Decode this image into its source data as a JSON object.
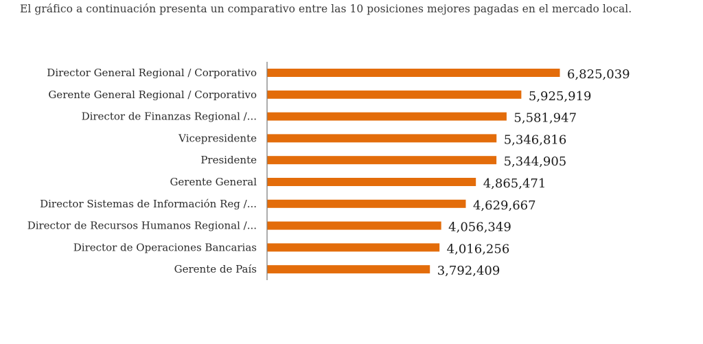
{
  "intro_text": "El gráfico a continuación presenta un comparativo entre las 10 posiciones mejores pagadas en el mercado local.",
  "chart_data": {
    "type": "bar",
    "orientation": "horizontal",
    "categories": [
      "Director General Regional / Corporativo",
      "Gerente General Regional / Corporativo",
      "Director de Finanzas Regional /...",
      "Vicepresidente",
      "Presidente",
      "Gerente General",
      "Director Sistemas de Información Reg /...",
      "Director de Recursos Humanos Regional /...",
      "Director de Operaciones Bancarias",
      "Gerente de País"
    ],
    "values": [
      6825039,
      5925919,
      5581947,
      5346816,
      5344905,
      4865471,
      4629667,
      4056349,
      4016256,
      3792409
    ],
    "value_labels": [
      "6,825,039",
      "5,925,919",
      "5,581,947",
      "5,346,816",
      "5,344,905",
      "4,865,471",
      "4,629,667",
      "4,056,349",
      "4,016,256",
      "3,792,409"
    ],
    "bar_color": "#E36C0A",
    "axis_color": "#808080",
    "xlim": [
      0,
      7600000
    ],
    "grid": false,
    "legend": "none"
  }
}
